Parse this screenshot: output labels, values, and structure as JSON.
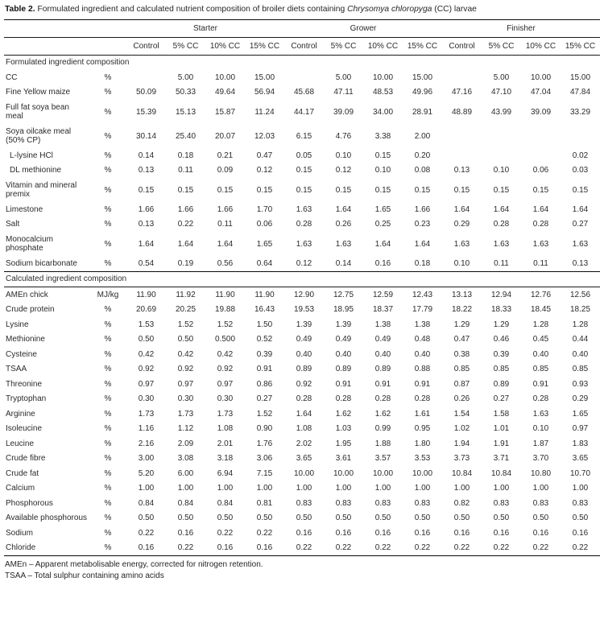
{
  "title": {
    "label": "Table 2.",
    "pre": " Formulated ingredient and calculated nutrient composition of broiler diets containing ",
    "species": "Chrysomya chloropyga",
    "post": " (CC) larvae"
  },
  "columns": {
    "groups": [
      {
        "label": "Starter"
      },
      {
        "label": "Grower"
      },
      {
        "label": "Finisher"
      }
    ],
    "sub": [
      "Control",
      "5% CC",
      "10% CC",
      "15% CC",
      "Control",
      "5% CC",
      "10% CC",
      "15% CC",
      "Control",
      "5% CC",
      "10% CC",
      "15% CC"
    ]
  },
  "sections": [
    {
      "title": "Formulated ingredient composition",
      "rows": [
        {
          "label": "CC",
          "unit": "%",
          "values": [
            "",
            "5.00",
            "10.00",
            "15.00",
            "",
            "5.00",
            "10.00",
            "15.00",
            "",
            "5.00",
            "10.00",
            "15.00"
          ]
        },
        {
          "label": "Fine Yellow maize",
          "unit": "%",
          "values": [
            "50.09",
            "50.33",
            "49.64",
            "56.94",
            "45.68",
            "47.11",
            "48.53",
            "49.96",
            "47.16",
            "47.10",
            "47.04",
            "47.84"
          ]
        },
        {
          "label": "Full fat soya bean meal",
          "unit": "%",
          "values": [
            "15.39",
            "15.13",
            "15.87",
            "11.24",
            "44.17",
            "39.09",
            "34.00",
            "28.91",
            "48.89",
            "43.99",
            "39.09",
            "33.29"
          ]
        },
        {
          "label": "Soya oilcake meal (50% CP)",
          "unit": "%",
          "values": [
            "30.14",
            "25.40",
            "20.07",
            "12.03",
            "6.15",
            "4.76",
            "3.38",
            "2.00",
            "",
            "",
            "",
            ""
          ]
        },
        {
          "label": "L-lysine HCl",
          "unit": "%",
          "indent": true,
          "values": [
            "0.14",
            "0.18",
            "0.21",
            "0.47",
            "0.05",
            "0.10",
            "0.15",
            "0.20",
            "",
            "",
            "",
            "0.02"
          ]
        },
        {
          "label": "DL methionine",
          "unit": "%",
          "indent": true,
          "values": [
            "0.13",
            "0.11",
            "0.09",
            "0.12",
            "0.15",
            "0.12",
            "0.10",
            "0.08",
            "0.13",
            "0.10",
            "0.06",
            "0.03"
          ]
        },
        {
          "label": "Vitamin and mineral premix",
          "unit": "%",
          "values": [
            "0.15",
            "0.15",
            "0.15",
            "0.15",
            "0.15",
            "0.15",
            "0.15",
            "0.15",
            "0.15",
            "0.15",
            "0.15",
            "0.15"
          ]
        },
        {
          "label": "Limestone",
          "unit": "%",
          "values": [
            "1.66",
            "1.66",
            "1.66",
            "1.70",
            "1.63",
            "1.64",
            "1.65",
            "1.66",
            "1.64",
            "1.64",
            "1.64",
            "1.64"
          ]
        },
        {
          "label": "Salt",
          "unit": "%",
          "values": [
            "0.13",
            "0.22",
            "0.11",
            "0.06",
            "0.28",
            "0.26",
            "0.25",
            "0.23",
            "0.29",
            "0.28",
            "0.28",
            "0.27"
          ]
        },
        {
          "label": "Monocalcium phosphate",
          "unit": "%",
          "values": [
            "1.64",
            "1.64",
            "1.64",
            "1.65",
            "1.63",
            "1.63",
            "1.64",
            "1.64",
            "1.63",
            "1.63",
            "1.63",
            "1.63"
          ]
        },
        {
          "label": "Sodium bicarbonate",
          "unit": "%",
          "values": [
            "0.54",
            "0.19",
            "0.56",
            "0.64",
            "0.12",
            "0.14",
            "0.16",
            "0.18",
            "0.10",
            "0.11",
            "0.11",
            "0.13"
          ]
        }
      ]
    },
    {
      "title": "Calculated ingredient composition",
      "rows": [
        {
          "label": "AMEn chick",
          "unit": "MJ/kg",
          "values": [
            "11.90",
            "11.92",
            "11.90",
            "11.90",
            "12.90",
            "12.75",
            "12.59",
            "12.43",
            "13.13",
            "12.94",
            "12.76",
            "12.56"
          ]
        },
        {
          "label": "Crude protein",
          "unit": "%",
          "values": [
            "20.69",
            "20.25",
            "19.88",
            "16.43",
            "19.53",
            "18.95",
            "18.37",
            "17.79",
            "18.22",
            "18.33",
            "18.45",
            "18.25"
          ]
        },
        {
          "label": "Lysine",
          "unit": "%",
          "values": [
            "1.53",
            "1.52",
            "1.52",
            "1.50",
            "1.39",
            "1.39",
            "1.38",
            "1.38",
            "1.29",
            "1.29",
            "1.28",
            "1.28"
          ]
        },
        {
          "label": "Methionine",
          "unit": "%",
          "values": [
            "0.50",
            "0.50",
            "0.500",
            "0.52",
            "0.49",
            "0.49",
            "0.49",
            "0.48",
            "0.47",
            "0.46",
            "0.45",
            "0.44"
          ]
        },
        {
          "label": "Cysteine",
          "unit": "%",
          "values": [
            "0.42",
            "0.42",
            "0.42",
            "0.39",
            "0.40",
            "0.40",
            "0.40",
            "0.40",
            "0.38",
            "0.39",
            "0.40",
            "0.40"
          ]
        },
        {
          "label": "TSAA",
          "unit": "%",
          "values": [
            "0.92",
            "0.92",
            "0.92",
            "0.91",
            "0.89",
            "0.89",
            "0.89",
            "0.88",
            "0.85",
            "0.85",
            "0.85",
            "0.85"
          ]
        },
        {
          "label": "Threonine",
          "unit": "%",
          "values": [
            "0.97",
            "0.97",
            "0.97",
            "0.86",
            "0.92",
            "0.91",
            "0.91",
            "0.91",
            "0.87",
            "0.89",
            "0.91",
            "0.93"
          ]
        },
        {
          "label": "Tryptophan",
          "unit": "%",
          "values": [
            "0.30",
            "0.30",
            "0.30",
            "0.27",
            "0.28",
            "0.28",
            "0.28",
            "0.28",
            "0.26",
            "0.27",
            "0.28",
            "0.29"
          ]
        },
        {
          "label": "Arginine",
          "unit": "%",
          "values": [
            "1.73",
            "1.73",
            "1.73",
            "1.52",
            "1.64",
            "1.62",
            "1.62",
            "1.61",
            "1.54",
            "1.58",
            "1.63",
            "1.65"
          ]
        },
        {
          "label": "Isoleucine",
          "unit": "%",
          "values": [
            "1.16",
            "1.12",
            "1.08",
            "0.90",
            "1.08",
            "1.03",
            "0.99",
            "0.95",
            "1.02",
            "1.01",
            "0.10",
            "0.97"
          ]
        },
        {
          "label": "Leucine",
          "unit": "%",
          "values": [
            "2.16",
            "2.09",
            "2.01",
            "1.76",
            "2.02",
            "1.95",
            "1.88",
            "1.80",
            "1.94",
            "1.91",
            "1.87",
            "1.83"
          ]
        },
        {
          "label": "Crude fibre",
          "unit": "%",
          "values": [
            "3.00",
            "3.08",
            "3.18",
            "3.06",
            "3.65",
            "3.61",
            "3.57",
            "3.53",
            "3.73",
            "3.71",
            "3.70",
            "3.65"
          ]
        },
        {
          "label": "Crude fat",
          "unit": "%",
          "values": [
            "5.20",
            "6.00",
            "6.94",
            "7.15",
            "10.00",
            "10.00",
            "10.00",
            "10.00",
            "10.84",
            "10.84",
            "10.80",
            "10.70"
          ]
        },
        {
          "label": "Calcium",
          "unit": "%",
          "values": [
            "1.00",
            "1.00",
            "1.00",
            "1.00",
            "1.00",
            "1.00",
            "1.00",
            "1.00",
            "1.00",
            "1.00",
            "1.00",
            "1.00"
          ]
        },
        {
          "label": "Phosphorous",
          "unit": "%",
          "values": [
            "0.84",
            "0.84",
            "0.84",
            "0.81",
            "0.83",
            "0.83",
            "0.83",
            "0.83",
            "0.82",
            "0.83",
            "0.83",
            "0.83"
          ]
        },
        {
          "label": "Available phosphorous",
          "unit": "%",
          "values": [
            "0.50",
            "0.50",
            "0.50",
            "0.50",
            "0.50",
            "0.50",
            "0.50",
            "0.50",
            "0.50",
            "0.50",
            "0.50",
            "0.50"
          ]
        },
        {
          "label": "Sodium",
          "unit": "%",
          "values": [
            "0.22",
            "0.16",
            "0.22",
            "0.22",
            "0.16",
            "0.16",
            "0.16",
            "0.16",
            "0.16",
            "0.16",
            "0.16",
            "0.16"
          ]
        },
        {
          "label": "Chloride",
          "unit": "%",
          "values": [
            "0.16",
            "0.22",
            "0.16",
            "0.16",
            "0.22",
            "0.22",
            "0.22",
            "0.22",
            "0.22",
            "0.22",
            "0.22",
            "0.22"
          ]
        }
      ]
    }
  ],
  "footnotes": [
    "AMEn – Apparent metabolisable energy, corrected for nitrogen retention.",
    "TSAA – Total sulphur containing amino acids"
  ]
}
